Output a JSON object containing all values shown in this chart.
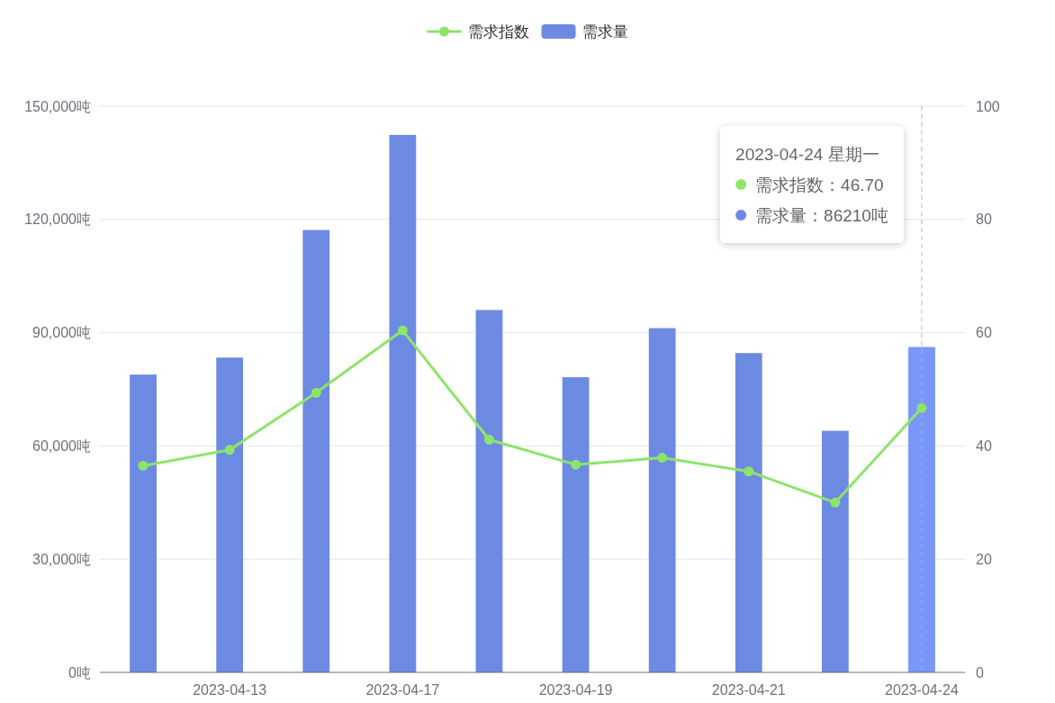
{
  "chart_data": {
    "type": "bar",
    "categories": [
      null,
      "2023-04-13",
      null,
      "2023-04-17",
      null,
      "2023-04-19",
      null,
      "2023-04-21",
      null,
      "2023-04-24"
    ],
    "series": [
      {
        "name": "需求指数",
        "type": "line",
        "axis": "y2",
        "color": "#8de46b",
        "marker": "circle",
        "values": [
          36.5,
          39.3,
          49.4,
          60.4,
          41.1,
          36.7,
          37.9,
          35.5,
          30.0,
          46.7
        ]
      },
      {
        "name": "需求量",
        "color": "#6d8ae2",
        "colors": [
          "#6d8ae2",
          "#6d8ae2",
          "#6d8ae2",
          "#6d8ae2",
          "#6d8ae2",
          "#6d8ae2",
          "#6d8ae2",
          "#6d8ae2",
          "#6d8ae2",
          "#7897f8"
        ],
        "values": [
          78900,
          83400,
          117200,
          142400,
          96000,
          78200,
          91200,
          84600,
          64000,
          86210
        ]
      }
    ],
    "ylim": [
      0,
      150000
    ],
    "yticks": [
      {
        "value": 0,
        "label": "0吨"
      },
      {
        "value": 30000,
        "label": "30,000吨"
      },
      {
        "value": 60000,
        "label": "60,000吨"
      },
      {
        "value": 90000,
        "label": "90,000吨"
      },
      {
        "value": 120000,
        "label": "120,000吨"
      },
      {
        "value": 150000,
        "label": "150,000吨"
      }
    ],
    "y2lim": [
      0,
      100
    ],
    "y2ticks": [
      0,
      20,
      40,
      60,
      80,
      100
    ],
    "grid": "y",
    "legend": "top",
    "ref_lines": [
      {
        "axis": "x",
        "value": "2023-04-24",
        "color": "#b5b5b5",
        "line_style": "dashed"
      }
    ],
    "annotations": [
      "2023-04-24 星期一",
      "需求指数：46.70",
      "需求量：86210吨"
    ]
  }
}
